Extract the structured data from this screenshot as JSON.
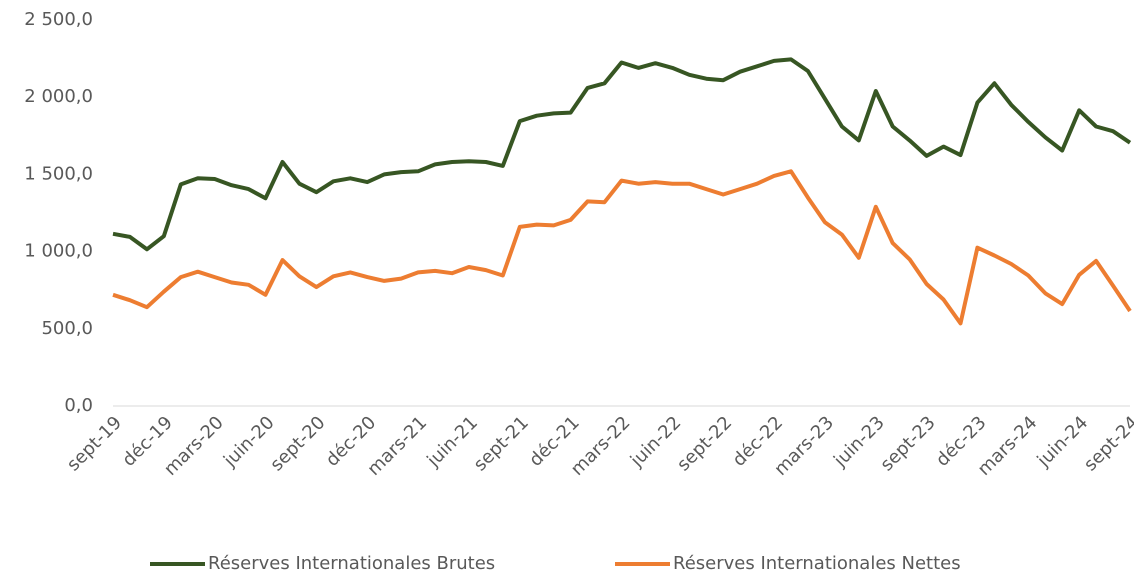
{
  "chart_data": {
    "type": "line",
    "categories": [
      "sept-19",
      null,
      null,
      "déc-19",
      null,
      null,
      "mars-20",
      null,
      null,
      "juin-20",
      null,
      null,
      "sept-20",
      null,
      null,
      "déc-20",
      null,
      null,
      "mars-21",
      null,
      null,
      "juin-21",
      null,
      null,
      "sept-21",
      null,
      null,
      "déc-21",
      null,
      null,
      "mars-22",
      null,
      null,
      "juin-22",
      null,
      null,
      "sept-22",
      null,
      null,
      "déc-22",
      null,
      null,
      "mars-23",
      null,
      null,
      "juin-23",
      null,
      null,
      "sept-23",
      null,
      null,
      "déc-23",
      null,
      null,
      "mars-24",
      null,
      null,
      "juin-24",
      null,
      null,
      "sept-24"
    ],
    "series": [
      {
        "name": "Réserves Internationales Brutes",
        "color": "#375623",
        "values": [
          1115,
          1095,
          1015,
          1100,
          1435,
          1475,
          1470,
          1430,
          1405,
          1345,
          1580,
          1440,
          1385,
          1455,
          1475,
          1450,
          1500,
          1515,
          1520,
          1565,
          1580,
          1585,
          1580,
          1555,
          1845,
          1880,
          1895,
          1900,
          2060,
          2090,
          2225,
          2190,
          2220,
          2190,
          2145,
          2120,
          2110,
          2165,
          2200,
          2235,
          2245,
          2170,
          1990,
          1810,
          1720,
          2040,
          1810,
          1720,
          1620,
          1680,
          1625,
          1965,
          2090,
          1950,
          1840,
          1740,
          1655,
          1915,
          1810,
          1780,
          1705
        ]
      },
      {
        "name": "Réserves Internationales Nettes",
        "color": "#ed7d31",
        "values": [
          720,
          685,
          640,
          740,
          835,
          870,
          835,
          800,
          785,
          720,
          945,
          840,
          770,
          840,
          865,
          835,
          810,
          825,
          865,
          875,
          860,
          900,
          880,
          845,
          1160,
          1175,
          1170,
          1205,
          1325,
          1320,
          1460,
          1440,
          1450,
          1440,
          1440,
          1405,
          1370,
          1405,
          1440,
          1490,
          1520,
          1350,
          1190,
          1110,
          960,
          1290,
          1055,
          950,
          790,
          690,
          535,
          1025,
          975,
          920,
          845,
          730,
          660,
          850,
          940,
          780,
          615
        ]
      }
    ],
    "ylim": [
      0,
      2500
    ],
    "yticks": [
      {
        "value": 0,
        "label": "0,0"
      },
      {
        "value": 500,
        "label": "500,0"
      },
      {
        "value": 1000,
        "label": "1 000,0"
      },
      {
        "value": 1500,
        "label": "1 500,0"
      },
      {
        "value": 2000,
        "label": "2 000,0"
      },
      {
        "value": 2500,
        "label": "2 500,0"
      }
    ],
    "grid": false,
    "legend": "bottom"
  }
}
